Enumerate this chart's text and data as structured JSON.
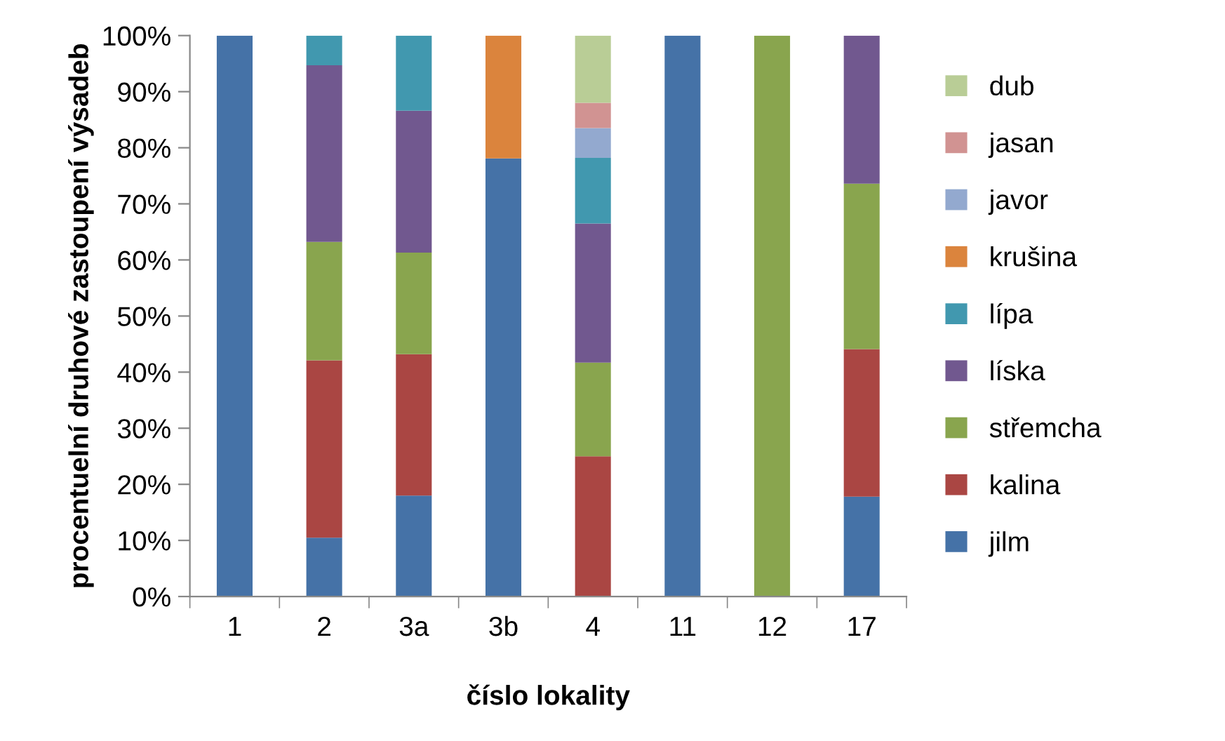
{
  "chart_data": {
    "type": "bar",
    "stacked": true,
    "xlabel": "číslo lokality",
    "ylabel": "procentuelní druhové zastoupení výsadeb",
    "categories": [
      "1",
      "2",
      "3a",
      "3b",
      "4",
      "11",
      "12",
      "17"
    ],
    "ylim": [
      0,
      100
    ],
    "yticks": [
      {
        "value": 0,
        "label": "0%"
      },
      {
        "value": 10,
        "label": "10%"
      },
      {
        "value": 20,
        "label": "20%"
      },
      {
        "value": 30,
        "label": "30%"
      },
      {
        "value": 40,
        "label": "40%"
      },
      {
        "value": 50,
        "label": "50%"
      },
      {
        "value": 60,
        "label": "60%"
      },
      {
        "value": 70,
        "label": "70%"
      },
      {
        "value": 80,
        "label": "80%"
      },
      {
        "value": 90,
        "label": "90%"
      },
      {
        "value": 100,
        "label": "100%"
      }
    ],
    "grid": false,
    "legend": "right",
    "series": [
      {
        "name": "jilm",
        "color": "#4572a7",
        "values": [
          100,
          10.5,
          18,
          78.1,
          0,
          100,
          0,
          17.8
        ]
      },
      {
        "name": "kalina",
        "color": "#aa4643",
        "values": [
          0,
          31.6,
          25.2,
          0,
          25,
          0,
          0,
          26.3
        ]
      },
      {
        "name": "střemcha",
        "color": "#89a54e",
        "values": [
          0,
          21.1,
          18.1,
          0,
          16.7,
          0,
          100,
          29.5
        ]
      },
      {
        "name": "líska",
        "color": "#71588f",
        "values": [
          0,
          31.5,
          25.3,
          0,
          24.8,
          0,
          0,
          26.4
        ]
      },
      {
        "name": "lípa",
        "color": "#4198af",
        "values": [
          0,
          5.3,
          13.4,
          0,
          11.7,
          0,
          0,
          0
        ]
      },
      {
        "name": "krušina",
        "color": "#db843d",
        "values": [
          0,
          0,
          0,
          21.9,
          0,
          0,
          0,
          0
        ]
      },
      {
        "name": "javor",
        "color": "#93a9cf",
        "values": [
          0,
          0,
          0,
          0,
          5.3,
          0,
          0,
          0
        ]
      },
      {
        "name": "jasan",
        "color": "#d19392",
        "values": [
          0,
          0,
          0,
          0,
          4.5,
          0,
          0,
          0
        ]
      },
      {
        "name": "dub",
        "color": "#b9cd96",
        "values": [
          0,
          0,
          0,
          0,
          12.0,
          0,
          0,
          0
        ]
      }
    ]
  }
}
